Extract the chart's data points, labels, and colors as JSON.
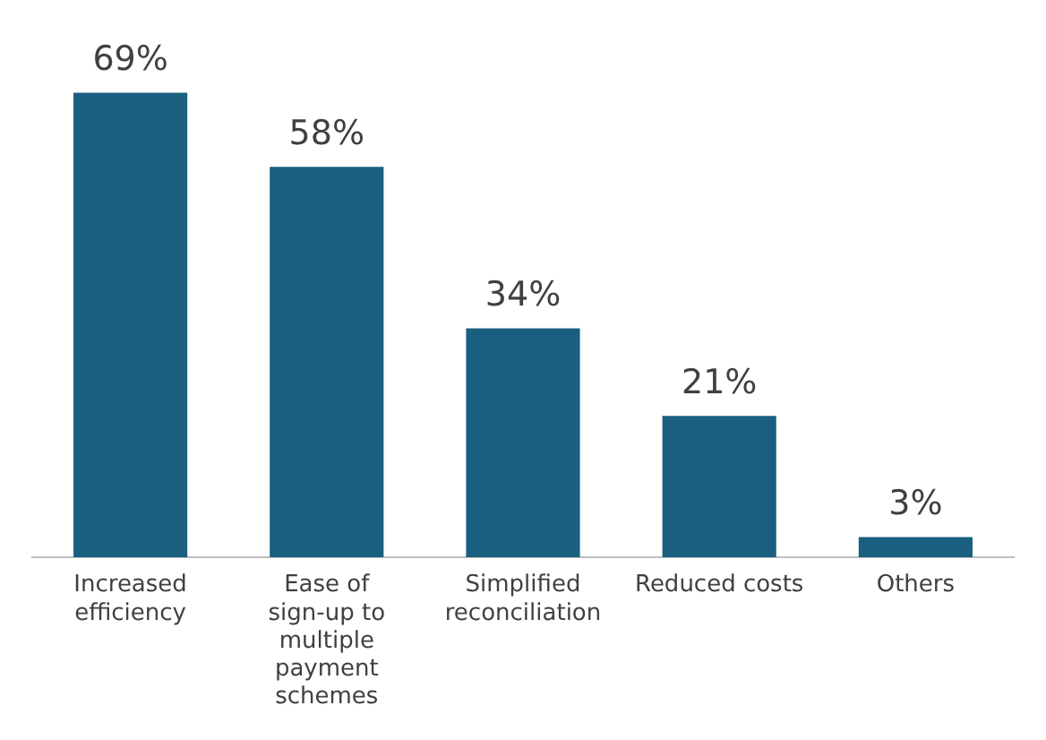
{
  "chart_data": {
    "type": "bar",
    "categories": [
      "Increased efficiency",
      "Ease of sign-up to multiple payment schemes",
      "Simplified reconciliation",
      "Reduced costs",
      "Others"
    ],
    "values": [
      69,
      58,
      34,
      21,
      3
    ],
    "value_labels": [
      "69%",
      "58%",
      "34%",
      "21%",
      "3%"
    ],
    "color": "#1a5f80",
    "grid": false,
    "legend": false,
    "tick_labels": "x"
  }
}
